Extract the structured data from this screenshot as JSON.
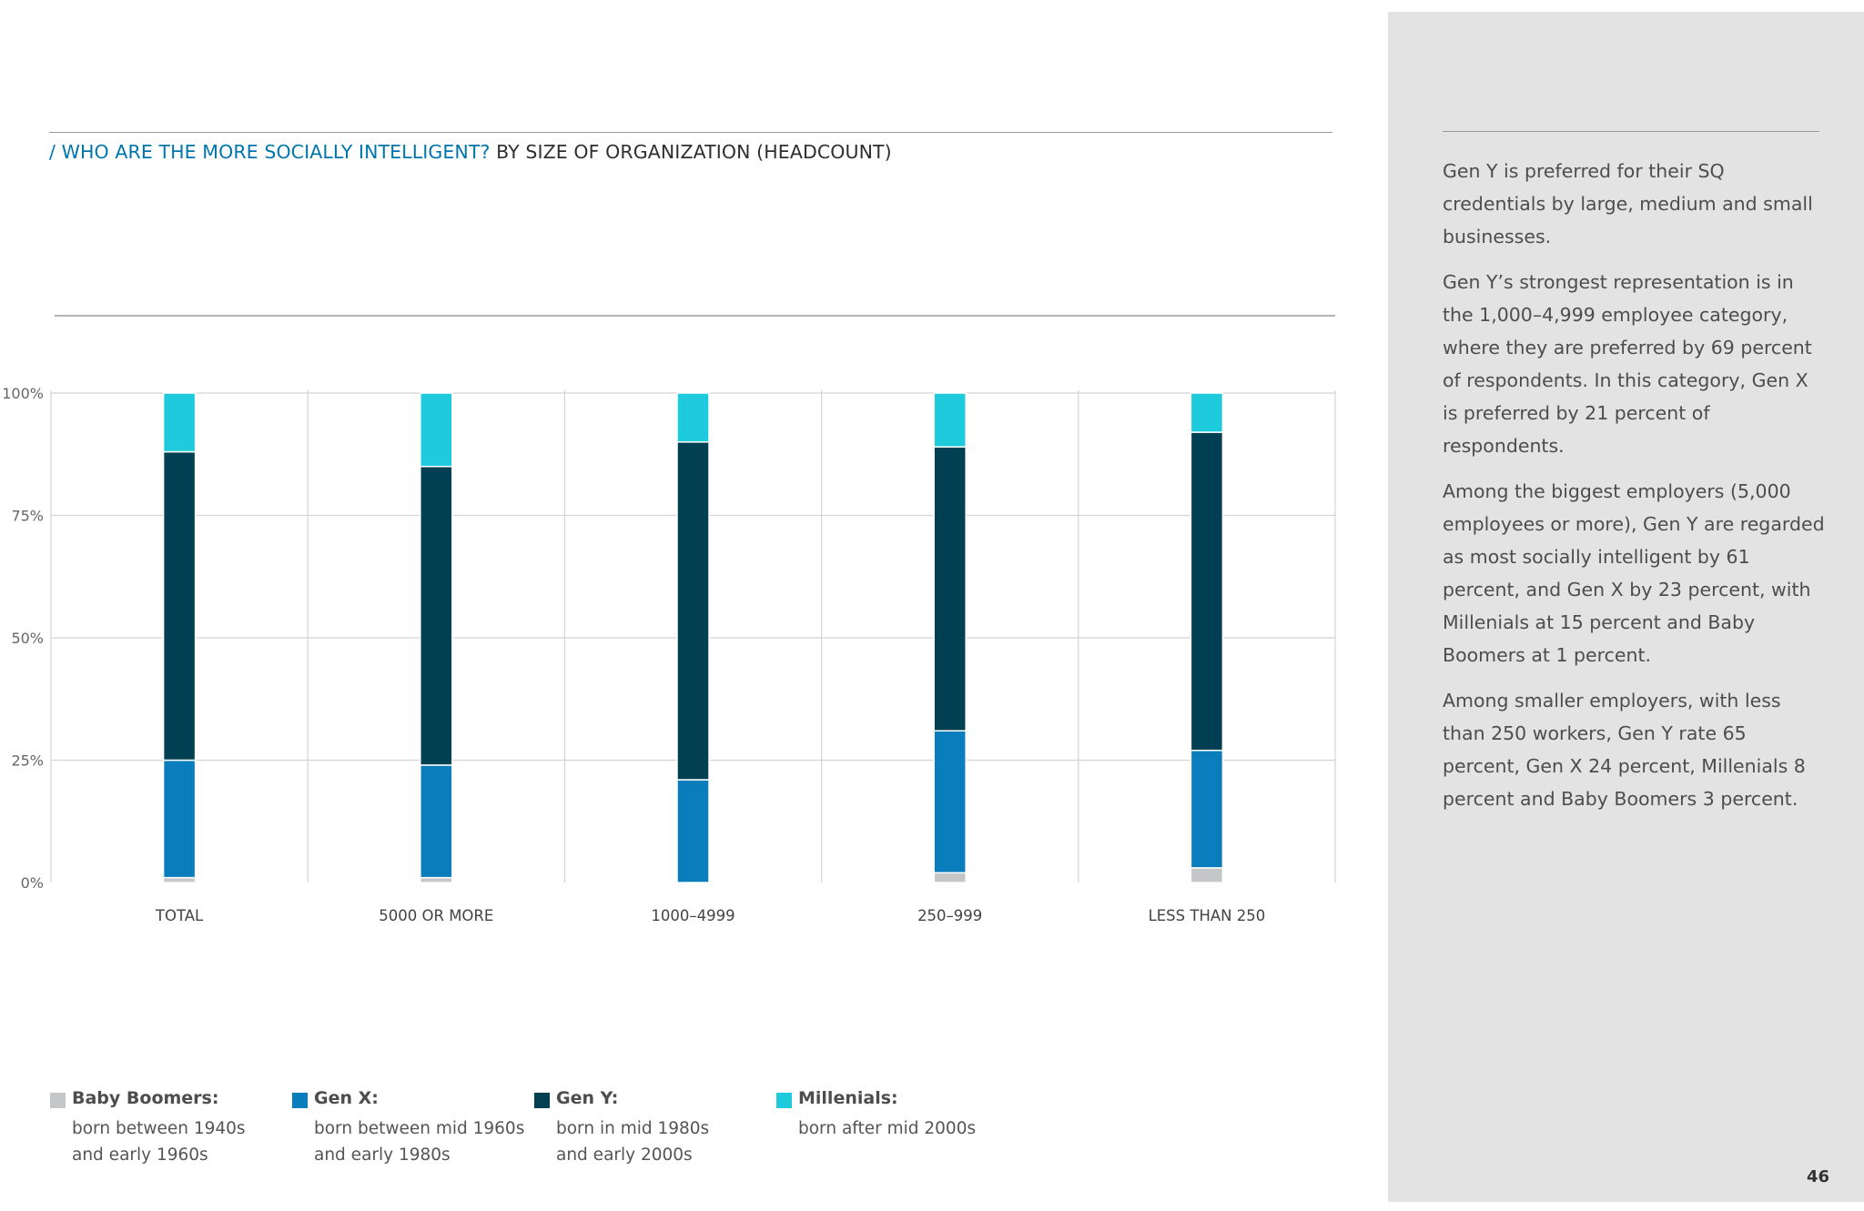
{
  "title": {
    "accent": "/ WHO ARE THE MORE SOCIALLY INTELLIGENT?",
    "rest": "BY SIZE OF ORGANIZATION (HEADCOUNT)"
  },
  "chart_data": {
    "type": "bar",
    "stacked": true,
    "categories": [
      "TOTAL",
      "5000 OR MORE",
      "1000–4999",
      "250–999",
      "LESS THAN 250"
    ],
    "ylim": [
      0,
      100
    ],
    "yticks": [
      "0%",
      "25%",
      "50%",
      "75%",
      "100%"
    ],
    "grid": true,
    "series": [
      {
        "name": "Baby Boomers",
        "color": "#c5c6c8",
        "values": [
          1,
          1,
          0,
          2,
          3
        ]
      },
      {
        "name": "Gen X",
        "color": "#0a7dbd",
        "values": [
          24,
          23,
          21,
          29,
          24
        ]
      },
      {
        "name": "Gen Y",
        "color": "#004052",
        "values": [
          63,
          61,
          69,
          58,
          65
        ]
      },
      {
        "name": "Millenials",
        "color": "#1ecbdc",
        "values": [
          12,
          15,
          10,
          11,
          8
        ]
      }
    ]
  },
  "legend": [
    {
      "name": "Baby Boomers:",
      "line1": "born between 1940s",
      "line2": "and early 1960s",
      "color": "#c5c6c8"
    },
    {
      "name": "Gen X:",
      "line1": "born between mid 1960s",
      "line2": "and early 1980s",
      "color": "#0a7dbd"
    },
    {
      "name": "Gen Y:",
      "line1": "born in mid 1980s",
      "line2": "and early 2000s",
      "color": "#004052"
    },
    {
      "name": "Millenials:",
      "line1": "born after mid 2000s",
      "line2": "",
      "color": "#1ecbdc"
    }
  ],
  "side": {
    "paragraphs": [
      "Gen Y is preferred for their SQ credentials by large, medium and small businesses.",
      "Gen Y’s strongest representation is in the 1,000–4,999 employee category, where they are preferred by 69 percent of respondents. In this category, Gen X is preferred by 21 percent of respondents.",
      "Among the biggest employers (5,000 employees or more), Gen Y are regarded as most socially intelligent by 61 percent, and Gen X by 23 percent, with Millenials at 15 percent and Baby Boomers at 1 percent.",
      "Among smaller employers, with less than 250 workers, Gen Y rate 65 percent, Gen X 24 percent, Millenials 8 percent and Baby Boomers 3 percent."
    ]
  },
  "page_number": "46"
}
